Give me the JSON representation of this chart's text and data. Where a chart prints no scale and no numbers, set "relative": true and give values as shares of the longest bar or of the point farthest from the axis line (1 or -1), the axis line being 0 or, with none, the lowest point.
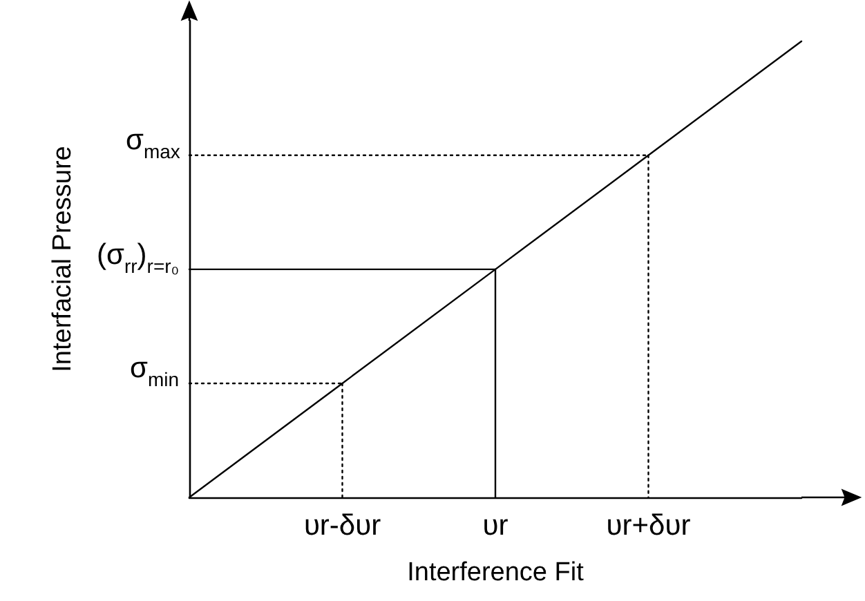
{
  "chart_data": {
    "type": "line",
    "relative": true,
    "xlabel": "Interference Fit",
    "ylabel": "Interfacial Pressure",
    "categories": [
      null,
      "υr-δυr",
      "υr",
      "υr+δυr",
      null
    ],
    "series": [
      {
        "color": "#000000",
        "values": [
          0,
          0.25,
          0.5,
          0.75,
          1
        ]
      },
      {
        "color": "#000000",
        "line_style": "dotted",
        "values": [
          0.25,
          0.25,
          null,
          null,
          null
        ]
      },
      {
        "color": "#000000",
        "line_style": "dotted",
        "x": [
          "υr-δυr",
          "υr-δυr"
        ],
        "values": [
          0.25,
          0
        ]
      },
      {
        "color": "#000000",
        "values": [
          0.5,
          0.5,
          0.5,
          null,
          null
        ]
      },
      {
        "color": "#000000",
        "x": [
          "υr",
          "υr"
        ],
        "values": [
          0.5,
          0
        ]
      },
      {
        "color": "#000000",
        "line_style": "dotted",
        "values": [
          0.75,
          0.75,
          0.75,
          0.75,
          null
        ]
      },
      {
        "color": "#000000",
        "line_style": "dotted",
        "x": [
          "υr+δυr",
          "υr+δυr"
        ],
        "values": [
          0.75,
          0
        ]
      }
    ],
    "annotations": [
      "σ$_{min}$",
      "(σ$_{rr}$)$_{r=r₀}$",
      "σ$_{max}$"
    ],
    "grid": false,
    "marker": "none",
    "line_style": "solid"
  }
}
